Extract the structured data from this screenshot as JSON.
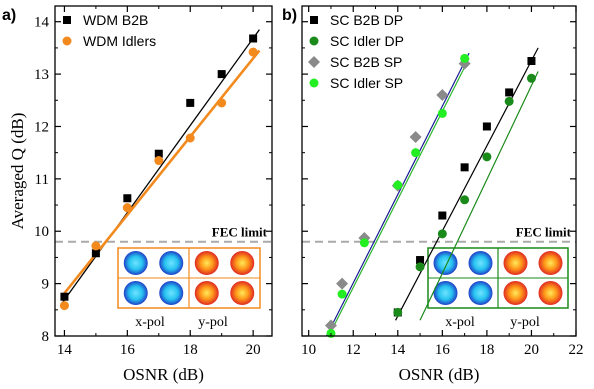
{
  "chart_data": [
    {
      "panel_label": "a)",
      "type": "scatter",
      "xlabel": "OSNR (dB)",
      "ylabel": "Averaged Q (dB)",
      "xlim": [
        13.7,
        20.6
      ],
      "ylim": [
        8,
        14.3
      ],
      "xticks": [
        "14",
        "16",
        "18",
        "20"
      ],
      "yticks": [
        "8",
        "9",
        "10",
        "11",
        "12",
        "13",
        "14"
      ],
      "fec_label": "FEC limit",
      "fec_level": 9.8,
      "inset_labels": [
        "x-pol",
        "y-pol"
      ],
      "legend_position": "top-left",
      "series": [
        {
          "name": "WDM B2B",
          "marker": "square",
          "color": "#000000",
          "x": [
            14,
            15,
            16,
            17,
            18,
            19,
            20
          ],
          "y": [
            8.75,
            9.58,
            10.63,
            11.48,
            12.45,
            13.0,
            13.68
          ],
          "fit": [
            [
              13.95,
              8.65
            ],
            [
              20.2,
              13.85
            ]
          ]
        },
        {
          "name": "WDM Idlers",
          "marker": "circle",
          "color": "#f28a1e",
          "x": [
            14,
            15,
            16,
            17,
            18,
            19,
            20
          ],
          "y": [
            8.58,
            9.72,
            10.45,
            11.35,
            11.78,
            12.45,
            13.42
          ],
          "fit": [
            [
              13.95,
              8.78
            ],
            [
              20.2,
              13.45
            ]
          ]
        }
      ]
    },
    {
      "panel_label": "b)",
      "type": "scatter",
      "xlabel": "OSNR (dB)",
      "ylabel": "",
      "xlim": [
        9.7,
        22
      ],
      "ylim": [
        8,
        14.3
      ],
      "xticks": [
        "10",
        "12",
        "14",
        "16",
        "18",
        "20",
        "22"
      ],
      "fec_label": "FEC limit",
      "fec_level": 9.8,
      "inset_labels": [
        "x-pol",
        "y-pol"
      ],
      "legend_position": "top-left",
      "series": [
        {
          "name": "SC B2B DP",
          "marker": "square",
          "color": "#000000",
          "x": [
            14,
            15,
            16,
            17,
            18,
            19,
            20
          ],
          "y": [
            8.45,
            9.45,
            10.3,
            11.22,
            12.0,
            12.65,
            13.25
          ],
          "fit": [
            [
              13.9,
              8.3
            ],
            [
              20.3,
              13.5
            ]
          ]
        },
        {
          "name": "SC Idler DP",
          "marker": "circle",
          "color": "#1a8a1a",
          "x": [
            14,
            15,
            16,
            17,
            18,
            19,
            20
          ],
          "y": [
            8.45,
            9.32,
            9.95,
            10.6,
            11.42,
            12.48,
            12.92
          ],
          "fit": [
            [
              15.0,
              8.3
            ],
            [
              20.3,
              13.05
            ]
          ]
        },
        {
          "name": "SC B2B SP",
          "marker": "diamond",
          "color": "#8a8a8a",
          "x": [
            11,
            11.5,
            12.5,
            14,
            14.8,
            16,
            17
          ],
          "y": [
            8.2,
            9.0,
            9.87,
            10.87,
            11.8,
            12.6,
            13.2
          ],
          "fit": [
            [
              10.8,
              8.0
            ],
            [
              17.2,
              13.4
            ]
          ]
        },
        {
          "name": "SC Idler SP",
          "marker": "circle",
          "color": "#22ee22",
          "x": [
            11,
            11.5,
            12.5,
            14,
            14.8,
            16,
            17
          ],
          "y": [
            8.05,
            8.8,
            9.78,
            10.88,
            11.5,
            12.25,
            13.3
          ],
          "fit": [
            [
              10.9,
              8.0
            ],
            [
              17.2,
              13.3
            ]
          ]
        }
      ]
    }
  ],
  "colors": {
    "fec_line": "#aaaaaa",
    "inset_border_a": "#f28a1e",
    "inset_border_b": "#1a8a1a",
    "constellation_blue": "#1e5bd8",
    "constellation_cyan": "#27c3f0",
    "constellation_red": "#e8402a",
    "constellation_yellow": "#ffd21a",
    "fit_blue": "#1a1a9a",
    "fit_green": "#2bb52b"
  }
}
